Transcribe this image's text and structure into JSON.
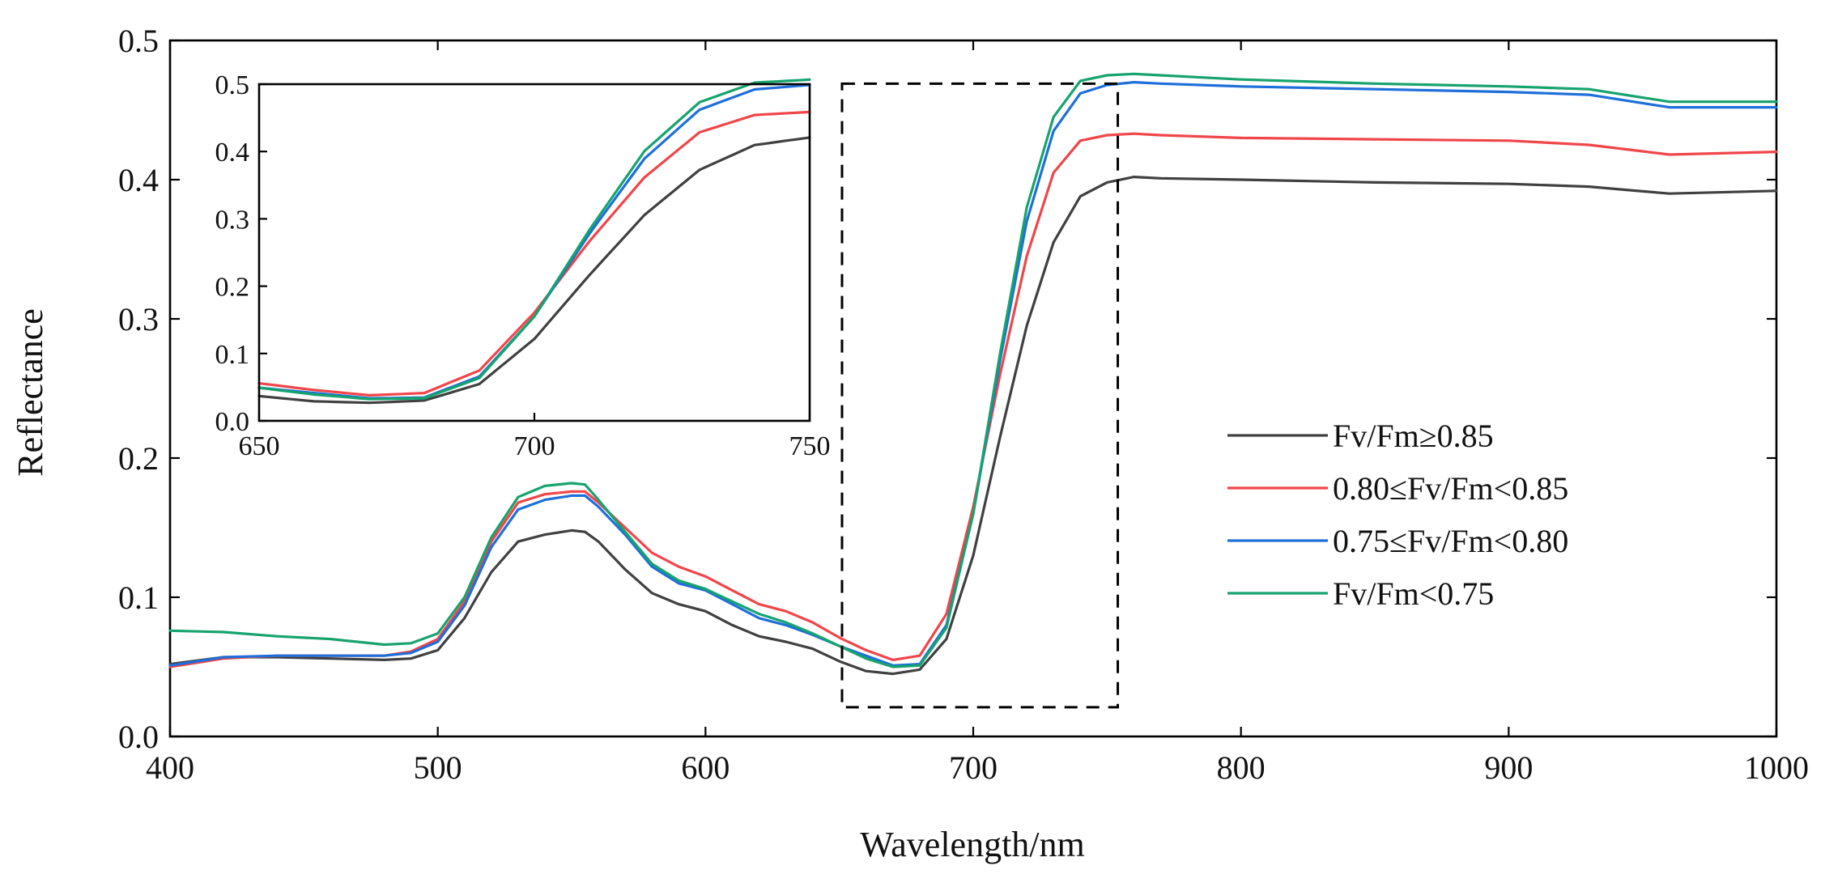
{
  "chart_data": {
    "type": "line",
    "xlabel": "Wavelength/nm",
    "ylabel": "Reflectance",
    "xlim": [
      400,
      1000
    ],
    "ylim": [
      0.0,
      0.5
    ],
    "x_ticks": [
      400,
      500,
      600,
      700,
      800,
      900,
      1000
    ],
    "x_tick_labels": [
      "400",
      "500",
      "600",
      "700",
      "800",
      "900",
      "1000"
    ],
    "y_ticks": [
      0.0,
      0.1,
      0.2,
      0.3,
      0.4,
      0.5
    ],
    "y_tick_labels": [
      "0.0",
      "0.1",
      "0.2",
      "0.3",
      "0.4",
      "0.5"
    ],
    "grid": false,
    "legend_position": "middle-right",
    "x": [
      400,
      420,
      440,
      460,
      480,
      490,
      500,
      510,
      520,
      530,
      540,
      550,
      555,
      560,
      570,
      580,
      590,
      600,
      610,
      620,
      630,
      640,
      650,
      660,
      670,
      680,
      690,
      700,
      710,
      720,
      730,
      740,
      750,
      760,
      770,
      800,
      850,
      900,
      930,
      960,
      1000
    ],
    "series": [
      {
        "name": "Fv/Fm≥0.85",
        "color": "#404040",
        "values": [
          0.052,
          0.057,
          0.057,
          0.056,
          0.055,
          0.056,
          0.062,
          0.085,
          0.118,
          0.14,
          0.145,
          0.148,
          0.147,
          0.14,
          0.12,
          0.103,
          0.095,
          0.09,
          0.08,
          0.072,
          0.068,
          0.063,
          0.054,
          0.047,
          0.045,
          0.048,
          0.07,
          0.13,
          0.215,
          0.295,
          0.355,
          0.388,
          0.398,
          0.402,
          0.401,
          0.4,
          0.398,
          0.397,
          0.395,
          0.39,
          0.392
        ]
      },
      {
        "name": "0.80≤Fv/Fm<0.85",
        "color": "#f0464a",
        "values": [
          0.05,
          0.056,
          0.058,
          0.058,
          0.058,
          0.061,
          0.07,
          0.097,
          0.14,
          0.168,
          0.174,
          0.176,
          0.176,
          0.168,
          0.15,
          0.132,
          0.122,
          0.115,
          0.105,
          0.095,
          0.09,
          0.082,
          0.071,
          0.062,
          0.055,
          0.058,
          0.088,
          0.165,
          0.26,
          0.345,
          0.405,
          0.428,
          0.432,
          0.433,
          0.432,
          0.43,
          0.429,
          0.428,
          0.425,
          0.418,
          0.42
        ]
      },
      {
        "name": "0.75≤Fv/Fm<0.80",
        "color": "#1e6fd9",
        "values": [
          0.051,
          0.057,
          0.058,
          0.058,
          0.058,
          0.06,
          0.068,
          0.094,
          0.136,
          0.163,
          0.17,
          0.173,
          0.173,
          0.165,
          0.145,
          0.122,
          0.11,
          0.105,
          0.095,
          0.085,
          0.08,
          0.073,
          0.065,
          0.058,
          0.051,
          0.052,
          0.08,
          0.16,
          0.27,
          0.37,
          0.435,
          0.462,
          0.468,
          0.47,
          0.469,
          0.467,
          0.465,
          0.463,
          0.461,
          0.452,
          0.452
        ]
      },
      {
        "name": "Fv/Fm<0.75",
        "color": "#16a36e",
        "values": [
          0.076,
          0.075,
          0.072,
          0.07,
          0.066,
          0.067,
          0.074,
          0.1,
          0.143,
          0.172,
          0.18,
          0.182,
          0.181,
          0.17,
          0.147,
          0.124,
          0.112,
          0.106,
          0.097,
          0.088,
          0.082,
          0.074,
          0.065,
          0.056,
          0.05,
          0.051,
          0.078,
          0.16,
          0.275,
          0.38,
          0.445,
          0.471,
          0.475,
          0.476,
          0.475,
          0.472,
          0.469,
          0.467,
          0.465,
          0.456,
          0.456
        ]
      }
    ],
    "highlight_region": {
      "x": [
        651,
        754
      ],
      "y": [
        0.021,
        0.469
      ]
    },
    "inset": {
      "xlim": [
        650,
        750
      ],
      "ylim": [
        0.0,
        0.5
      ],
      "x_ticks": [
        650,
        700,
        750
      ],
      "x_tick_labels": [
        "650",
        "700",
        "750"
      ],
      "y_ticks": [
        0.0,
        0.1,
        0.2,
        0.3,
        0.4,
        0.5
      ],
      "y_tick_labels": [
        "0.0",
        "0.1",
        "0.2",
        "0.3",
        "0.4",
        "0.5"
      ]
    }
  }
}
